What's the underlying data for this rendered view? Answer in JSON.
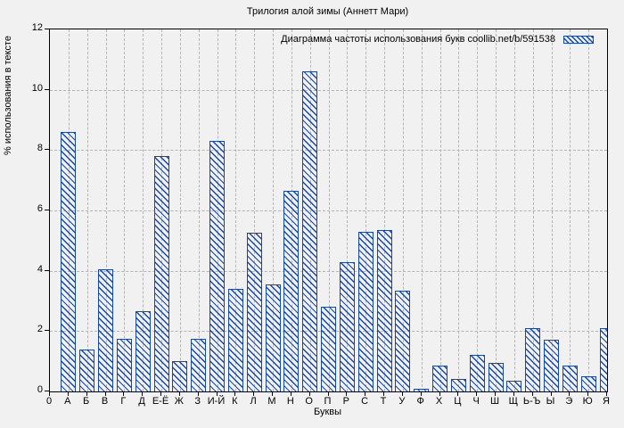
{
  "chart_data": {
    "type": "bar",
    "title": "Трилогия алой зимы (Аннетт Мари)",
    "legend": "Диаграмма частоты использования букв coollib.net/b/591538",
    "legend_position": "top-right-inside",
    "xlabel": "Буквы",
    "ylabel": "% использования в тексте",
    "origin_tick_label": "0",
    "ylim": [
      0,
      12
    ],
    "yticks": [
      0,
      2,
      4,
      6,
      8,
      10,
      12
    ],
    "grid": true,
    "bar_color": "#1548ad",
    "background_color": "#f1f1f1",
    "grid_color": "#b4b4b4",
    "categories": [
      "А",
      "Б",
      "В",
      "Г",
      "Д",
      "Е-Ё",
      "Ж",
      "З",
      "И-Й",
      "К",
      "Л",
      "М",
      "Н",
      "О",
      "П",
      "Р",
      "С",
      "Т",
      "У",
      "Ф",
      "Х",
      "Ц",
      "Ч",
      "Ш",
      "Щ",
      "Ь-Ъ",
      "Ы",
      "Э",
      "Ю",
      "Я"
    ],
    "values": [
      8.6,
      1.4,
      4.05,
      1.75,
      2.65,
      7.8,
      1.0,
      1.75,
      8.3,
      3.4,
      5.25,
      3.55,
      6.65,
      10.6,
      2.8,
      4.3,
      5.3,
      5.35,
      3.35,
      0.1,
      0.85,
      0.4,
      1.2,
      0.95,
      0.35,
      2.1,
      1.7,
      0.85,
      0.5,
      2.1
    ]
  }
}
